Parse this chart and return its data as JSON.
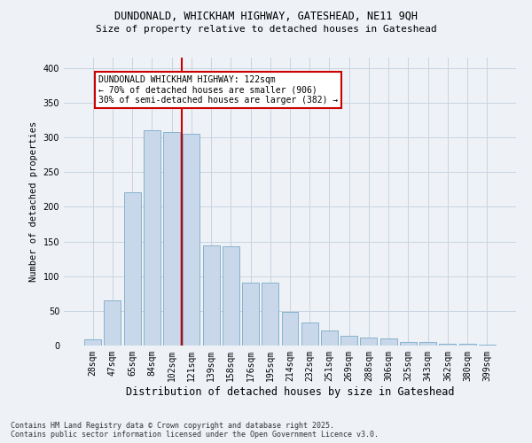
{
  "title_line1": "DUNDONALD, WHICKHAM HIGHWAY, GATESHEAD, NE11 9QH",
  "title_line2": "Size of property relative to detached houses in Gateshead",
  "xlabel": "Distribution of detached houses by size in Gateshead",
  "ylabel": "Number of detached properties",
  "bar_color": "#c8d8ea",
  "bar_edge_color": "#7aaac8",
  "vline_color": "#cc0000",
  "categories": [
    "28sqm",
    "47sqm",
    "65sqm",
    "84sqm",
    "102sqm",
    "121sqm",
    "139sqm",
    "158sqm",
    "176sqm",
    "195sqm",
    "214sqm",
    "232sqm",
    "251sqm",
    "269sqm",
    "288sqm",
    "306sqm",
    "325sqm",
    "343sqm",
    "362sqm",
    "380sqm",
    "399sqm"
  ],
  "bar_values": [
    9,
    65,
    221,
    310,
    308,
    305,
    144,
    143,
    91,
    91,
    48,
    33,
    22,
    14,
    11,
    10,
    5,
    5,
    3,
    2,
    1
  ],
  "ylim": [
    0,
    415
  ],
  "yticks": [
    0,
    50,
    100,
    150,
    200,
    250,
    300,
    350,
    400
  ],
  "annotation_title": "DUNDONALD WHICKHAM HIGHWAY: 122sqm",
  "annotation_line1": "← 70% of detached houses are smaller (906)",
  "annotation_line2": "30% of semi-detached houses are larger (382) →",
  "footer_line1": "Contains HM Land Registry data © Crown copyright and database right 2025.",
  "footer_line2": "Contains public sector information licensed under the Open Government Licence v3.0.",
  "background_color": "#eef2f7",
  "plot_bg_color": "#eef2f7",
  "grid_color": "#c8d4e0"
}
